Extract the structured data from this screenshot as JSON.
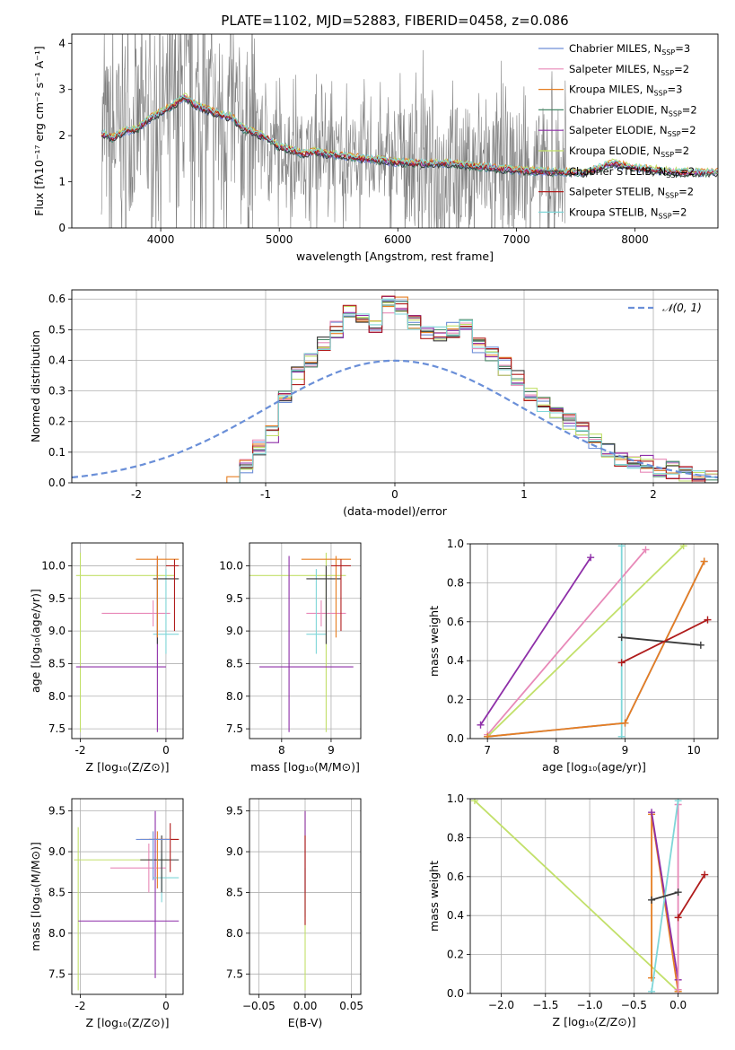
{
  "figure": {
    "title": "PLATE=1102, MJD=52883, FIBERID=0458, z=0.086"
  },
  "colors": {
    "Chabrier MILES": "#6f8fd8",
    "Salpeter MILES": "#e889b8",
    "Kroupa MILES": "#e67e22",
    "Chabrier ELODIE": "#4a8a6a",
    "Salpeter ELODIE": "#8e2fa8",
    "Kroupa ELODIE": "#c2e06a",
    "Chabrier STELIB": "#3a3a3a",
    "Salpeter STELIB": "#b01c1c",
    "Kroupa STELIB": "#7fd6d8",
    "data": "#7f7f7f",
    "gaussian": "#6a8fd8"
  },
  "chart_data": [
    {
      "id": "spectrum",
      "type": "line",
      "xlabel": "wavelength [Angstrom, rest frame]",
      "ylabel": "Flux [fλ10⁻¹⁷ erg cm⁻² s⁻¹ A⁻¹]",
      "xlim": [
        3250,
        8700
      ],
      "ylim": [
        0,
        4.2
      ],
      "xticks": [
        4000,
        5000,
        6000,
        7000,
        8000
      ],
      "yticks": [
        0,
        1,
        2,
        3,
        4
      ],
      "grid": false,
      "legend_position": "top-right",
      "data_range": [
        3500,
        7420
      ],
      "model_range": [
        3500,
        8700
      ],
      "model_continuum": [
        [
          3500,
          2.05
        ],
        [
          3600,
          1.95
        ],
        [
          3700,
          2.1
        ],
        [
          3800,
          2.15
        ],
        [
          3900,
          2.35
        ],
        [
          4000,
          2.5
        ],
        [
          4100,
          2.65
        ],
        [
          4200,
          2.85
        ],
        [
          4300,
          2.65
        ],
        [
          4400,
          2.55
        ],
        [
          4500,
          2.45
        ],
        [
          4600,
          2.4
        ],
        [
          4700,
          2.15
        ],
        [
          4800,
          2.05
        ],
        [
          4900,
          1.95
        ],
        [
          5000,
          1.75
        ],
        [
          5100,
          1.7
        ],
        [
          5200,
          1.6
        ],
        [
          5300,
          1.65
        ],
        [
          5400,
          1.6
        ],
        [
          5500,
          1.58
        ],
        [
          5600,
          1.55
        ],
        [
          5700,
          1.5
        ],
        [
          5800,
          1.48
        ],
        [
          5900,
          1.45
        ],
        [
          6000,
          1.42
        ],
        [
          6200,
          1.4
        ],
        [
          6400,
          1.4
        ],
        [
          6600,
          1.35
        ],
        [
          6800,
          1.3
        ],
        [
          7000,
          1.25
        ],
        [
          7200,
          1.22
        ],
        [
          7400,
          1.2
        ],
        [
          7600,
          1.2
        ],
        [
          7800,
          1.4
        ],
        [
          8000,
          1.3
        ],
        [
          8200,
          1.25
        ],
        [
          8400,
          1.2
        ],
        [
          8700,
          1.2
        ]
      ],
      "legend": [
        {
          "label": "Chabrier MILES, N",
          "sub": "SSP",
          "suffix": "=3",
          "color_key": "Chabrier MILES"
        },
        {
          "label": "Salpeter MILES, N",
          "sub": "SSP",
          "suffix": "=2",
          "color_key": "Salpeter MILES"
        },
        {
          "label": "Kroupa MILES, N",
          "sub": "SSP",
          "suffix": "=3",
          "color_key": "Kroupa MILES"
        },
        {
          "label": "Chabrier ELODIE, N",
          "sub": "SSP",
          "suffix": "=2",
          "color_key": "Chabrier ELODIE"
        },
        {
          "label": "Salpeter ELODIE, N",
          "sub": "SSP",
          "suffix": "=2",
          "color_key": "Salpeter ELODIE"
        },
        {
          "label": "Kroupa ELODIE, N",
          "sub": "SSP",
          "suffix": "=2",
          "color_key": "Kroupa ELODIE"
        },
        {
          "label": "Chabrier STELIB, N",
          "sub": "SSP",
          "suffix": "=2",
          "color_key": "Chabrier STELIB"
        },
        {
          "label": "Salpeter STELIB, N",
          "sub": "SSP",
          "suffix": "=2",
          "color_key": "Salpeter STELIB"
        },
        {
          "label": "Kroupa STELIB, N",
          "sub": "SSP",
          "suffix": "=2",
          "color_key": "Kroupa STELIB"
        }
      ]
    },
    {
      "id": "residuals",
      "type": "line",
      "xlabel": "(data-model)/error",
      "ylabel": "Normed distribution",
      "xlim": [
        -2.5,
        2.5
      ],
      "ylim": [
        0,
        0.63
      ],
      "xticks": [
        -2,
        -1,
        0,
        1,
        2
      ],
      "yticks": [
        0.0,
        0.1,
        0.2,
        0.3,
        0.4,
        0.5,
        0.6
      ],
      "grid": true,
      "legend_position": "top-right",
      "legend": [
        {
          "label": "𝒩(0, 1)",
          "color_key": "gaussian"
        }
      ],
      "histogram_edges": [
        -1.3,
        -1.2,
        -1.1,
        -1.0,
        -0.9,
        -0.8,
        -0.7,
        -0.6,
        -0.5,
        -0.4,
        -0.3,
        -0.2,
        -0.1,
        0.0,
        0.1,
        0.2,
        0.3,
        0.4,
        0.5,
        0.6,
        0.7,
        0.8,
        0.9,
        1.0,
        1.1,
        1.2,
        1.3,
        1.4,
        1.5,
        1.6,
        1.7,
        1.8,
        1.9,
        2.0,
        2.1,
        2.2,
        2.3,
        2.4,
        2.5
      ],
      "histogram_base": [
        0.01,
        0.05,
        0.12,
        0.16,
        0.27,
        0.35,
        0.4,
        0.46,
        0.5,
        0.55,
        0.55,
        0.52,
        0.58,
        0.58,
        0.53,
        0.5,
        0.48,
        0.5,
        0.52,
        0.45,
        0.42,
        0.38,
        0.34,
        0.29,
        0.26,
        0.23,
        0.2,
        0.17,
        0.13,
        0.1,
        0.08,
        0.07,
        0.06,
        0.05,
        0.04,
        0.03,
        0.02,
        0.01
      ]
    },
    {
      "id": "age-vs-Z",
      "type": "scatter",
      "xlabel": "Z [log₁₀(Z/Z⊙)]",
      "ylabel": "age  [log₁₀(age/yr)]",
      "xlim": [
        -2.2,
        0.4
      ],
      "ylim": [
        7.35,
        10.35
      ],
      "xticks": [
        -2,
        0
      ],
      "yticks": [
        7.5,
        8.0,
        8.5,
        9.0,
        9.5,
        10.0
      ],
      "grid": true,
      "errorbars": [
        {
          "color_key": "Kroupa ELODIE",
          "x": -2.0,
          "y": 9.85,
          "xerr": [
            0.1,
            2.2
          ],
          "yerr": [
            2.4,
            0.35
          ]
        },
        {
          "color_key": "Salpeter ELODIE",
          "x": -0.2,
          "y": 8.45,
          "xerr": [
            1.9,
            0.2
          ],
          "yerr": [
            1.0,
            1.7
          ]
        },
        {
          "color_key": "Salpeter MILES",
          "x": -0.3,
          "y": 9.27,
          "xerr": [
            1.2,
            0.4
          ],
          "yerr": [
            0.2,
            0.2
          ]
        },
        {
          "color_key": "Kroupa STELIB",
          "x": 0.0,
          "y": 8.95,
          "xerr": [
            0.3,
            0.3
          ],
          "yerr": [
            0.3,
            1.0
          ]
        },
        {
          "color_key": "Chabrier STELIB",
          "x": -0.2,
          "y": 9.8,
          "xerr": [
            0.1,
            0.5
          ],
          "yerr": [
            1.0,
            0.2
          ]
        },
        {
          "color_key": "Kroupa MILES",
          "x": -0.2,
          "y": 10.1,
          "xerr": [
            0.5,
            0.5
          ],
          "yerr": [
            1.2,
            0.05
          ]
        },
        {
          "color_key": "Salpeter STELIB",
          "x": 0.2,
          "y": 10.0,
          "xerr": [
            0.2,
            0.1
          ],
          "yerr": [
            1.0,
            0.1
          ]
        }
      ]
    },
    {
      "id": "age-vs-mass",
      "type": "scatter",
      "xlabel": "mass [log₁₀(M/M⊙)]",
      "ylabel": "",
      "xlim": [
        7.35,
        9.6
      ],
      "ylim": [
        7.35,
        10.35
      ],
      "xticks": [
        8,
        9
      ],
      "yticks": [
        7.5,
        8.0,
        8.5,
        9.0,
        9.5,
        10.0
      ],
      "grid": true,
      "errorbars": [
        {
          "color_key": "Kroupa ELODIE",
          "x": 8.9,
          "y": 9.85,
          "xerr": [
            1.6,
            0.4
          ],
          "yerr": [
            2.4,
            0.35
          ]
        },
        {
          "color_key": "Salpeter ELODIE",
          "x": 8.15,
          "y": 8.45,
          "xerr": [
            0.6,
            1.3
          ],
          "yerr": [
            1.0,
            1.7
          ]
        },
        {
          "color_key": "Salpeter MILES",
          "x": 8.8,
          "y": 9.27,
          "xerr": [
            0.3,
            0.5
          ],
          "yerr": [
            0.2,
            0.2
          ]
        },
        {
          "color_key": "Kroupa STELIB",
          "x": 8.7,
          "y": 8.95,
          "xerr": [
            0.2,
            0.2
          ],
          "yerr": [
            0.3,
            1.0
          ]
        },
        {
          "color_key": "Chabrier STELIB",
          "x": 8.9,
          "y": 9.8,
          "xerr": [
            0.4,
            0.3
          ],
          "yerr": [
            1.0,
            0.2
          ]
        },
        {
          "color_key": "Kroupa MILES",
          "x": 9.1,
          "y": 10.1,
          "xerr": [
            0.7,
            0.3
          ],
          "yerr": [
            1.2,
            0.05
          ]
        },
        {
          "color_key": "Salpeter STELIB",
          "x": 9.2,
          "y": 10.0,
          "xerr": [
            0.2,
            0.2
          ],
          "yerr": [
            1.0,
            0.1
          ]
        }
      ]
    },
    {
      "id": "weight-vs-age",
      "type": "line",
      "xlabel": "age  [log₁₀(age/yr)]",
      "ylabel": "mass weight",
      "xlim": [
        6.75,
        10.35
      ],
      "ylim": [
        0,
        1
      ],
      "xticks": [
        7,
        8,
        9,
        10
      ],
      "yticks": [
        0.0,
        0.2,
        0.4,
        0.6,
        0.8,
        1.0
      ],
      "grid": true,
      "lines": [
        {
          "color_key": "Salpeter ELODIE",
          "points": [
            [
              6.9,
              0.07
            ],
            [
              8.5,
              0.93
            ]
          ]
        },
        {
          "color_key": "Salpeter MILES",
          "points": [
            [
              7.0,
              0.02
            ],
            [
              9.3,
              0.97
            ]
          ]
        },
        {
          "color_key": "Kroupa ELODIE",
          "points": [
            [
              7.0,
              0.01
            ],
            [
              9.85,
              0.99
            ]
          ]
        },
        {
          "color_key": "Kroupa STELIB",
          "points": [
            [
              8.95,
              0.01
            ],
            [
              8.95,
              0.99
            ]
          ]
        },
        {
          "color_key": "Chabrier MILES",
          "points": [
            [
              7.0,
              0.01
            ],
            [
              9.0,
              0.08
            ],
            [
              10.15,
              0.91
            ]
          ]
        },
        {
          "color_key": "Kroupa MILES",
          "points": [
            [
              7.0,
              0.01
            ],
            [
              9.0,
              0.08
            ],
            [
              10.15,
              0.91
            ]
          ]
        },
        {
          "color_key": "Chabrier STELIB",
          "points": [
            [
              8.95,
              0.52
            ],
            [
              10.1,
              0.48
            ]
          ]
        },
        {
          "color_key": "Salpeter STELIB",
          "points": [
            [
              8.95,
              0.39
            ],
            [
              10.2,
              0.61
            ]
          ]
        }
      ]
    },
    {
      "id": "mass-vs-Z",
      "type": "scatter",
      "xlabel": "Z [log₁₀(Z/Z⊙)]",
      "ylabel": "mass [log₁₀(M/M⊙)]",
      "xlim": [
        -2.2,
        0.4
      ],
      "ylim": [
        7.25,
        9.65
      ],
      "xticks": [
        -2,
        0
      ],
      "yticks": [
        7.5,
        8.0,
        8.5,
        9.0,
        9.5
      ],
      "grid": true,
      "errorbars": [
        {
          "color_key": "Kroupa ELODIE",
          "x": -2.05,
          "y": 8.9,
          "xerr": [
            0.1,
            2.1
          ],
          "yerr": [
            1.6,
            0.4
          ]
        },
        {
          "color_key": "Salpeter ELODIE",
          "x": -0.25,
          "y": 8.15,
          "xerr": [
            1.8,
            0.55
          ],
          "yerr": [
            0.7,
            1.35
          ]
        },
        {
          "color_key": "Salpeter MILES",
          "x": -0.4,
          "y": 8.8,
          "xerr": [
            0.9,
            0.4
          ],
          "yerr": [
            0.3,
            0.3
          ]
        },
        {
          "color_key": "Kroupa STELIB",
          "x": -0.1,
          "y": 8.68,
          "xerr": [
            0.2,
            0.4
          ],
          "yerr": [
            0.3,
            0.3
          ]
        },
        {
          "color_key": "Chabrier STELIB",
          "x": -0.1,
          "y": 8.9,
          "xerr": [
            0.5,
            0.4
          ],
          "yerr": [
            0.4,
            0.3
          ]
        },
        {
          "color_key": "Kroupa MILES",
          "x": -0.2,
          "y": 9.15,
          "xerr": [
            0.4,
            0.5
          ],
          "yerr": [
            0.6,
            0.1
          ]
        },
        {
          "color_key": "Salpeter STELIB",
          "x": 0.1,
          "y": 9.15,
          "xerr": [
            0.5,
            0.2
          ],
          "yerr": [
            0.4,
            0.2
          ]
        },
        {
          "color_key": "Chabrier MILES",
          "x": -0.3,
          "y": 9.15,
          "xerr": [
            0.4,
            0.4
          ],
          "yerr": [
            0.5,
            0.1
          ]
        }
      ]
    },
    {
      "id": "mass-vs-EBV",
      "type": "scatter",
      "xlabel": "E(B-V)",
      "ylabel": "",
      "xlim": [
        -0.06,
        0.06
      ],
      "ylim": [
        7.25,
        9.65
      ],
      "xticks": [
        -0.05,
        0.0,
        0.05
      ],
      "xtick_labels": [
        "−0.05",
        "0.00",
        "0.05"
      ],
      "yticks": [
        7.5,
        8.0,
        8.5,
        9.0,
        9.5
      ],
      "grid": true,
      "errorbars": [
        {
          "color_key": "Kroupa ELODIE",
          "x": 0.0,
          "y": 8.5,
          "xerr": [
            0,
            0
          ],
          "yerr": [
            1.2,
            1.0
          ]
        },
        {
          "color_key": "Salpeter ELODIE",
          "x": 0.0,
          "y": 8.5,
          "xerr": [
            0,
            0
          ],
          "yerr": [
            0.0,
            1.0
          ]
        },
        {
          "color_key": "Kroupa STELIB",
          "x": 0.0,
          "y": 8.5,
          "xerr": [
            0,
            0
          ],
          "yerr": [
            0.3,
            0.3
          ]
        },
        {
          "color_key": "Salpeter STELIB",
          "x": 0.0,
          "y": 8.5,
          "xerr": [
            0,
            0
          ],
          "yerr": [
            0.4,
            0.7
          ]
        }
      ]
    },
    {
      "id": "weight-vs-Z",
      "type": "line",
      "xlabel": "Z [log₁₀(Z/Z⊙)]",
      "ylabel": "mass weight",
      "xlim": [
        -2.35,
        0.45
      ],
      "ylim": [
        0,
        1
      ],
      "xticks": [
        -2.0,
        -1.5,
        -1.0,
        -0.5,
        0.0
      ],
      "xtick_labels": [
        "−2.0",
        "−1.5",
        "−1.0",
        "−0.5",
        "0.0"
      ],
      "yticks": [
        0.0,
        0.2,
        0.4,
        0.6,
        0.8,
        1.0
      ],
      "grid": true,
      "lines": [
        {
          "color_key": "Kroupa ELODIE",
          "points": [
            [
              -2.3,
              0.99
            ],
            [
              0.0,
              0.01
            ]
          ]
        },
        {
          "color_key": "Kroupa MILES",
          "points": [
            [
              -0.3,
              0.08
            ],
            [
              -0.3,
              0.92
            ],
            [
              0.0,
              0.01
            ]
          ]
        },
        {
          "color_key": "Salpeter ELODIE",
          "points": [
            [
              -0.3,
              0.93
            ],
            [
              0.0,
              0.07
            ]
          ]
        },
        {
          "color_key": "Salpeter MILES",
          "points": [
            [
              0.0,
              0.97
            ],
            [
              0.0,
              0.02
            ]
          ]
        },
        {
          "color_key": "Kroupa STELIB",
          "points": [
            [
              -0.3,
              0.01
            ],
            [
              0.0,
              0.99
            ]
          ]
        },
        {
          "color_key": "Chabrier STELIB",
          "points": [
            [
              -0.3,
              0.48
            ],
            [
              0.0,
              0.52
            ]
          ]
        },
        {
          "color_key": "Salpeter STELIB",
          "points": [
            [
              0.0,
              0.39
            ],
            [
              0.3,
              0.61
            ]
          ]
        }
      ]
    }
  ]
}
